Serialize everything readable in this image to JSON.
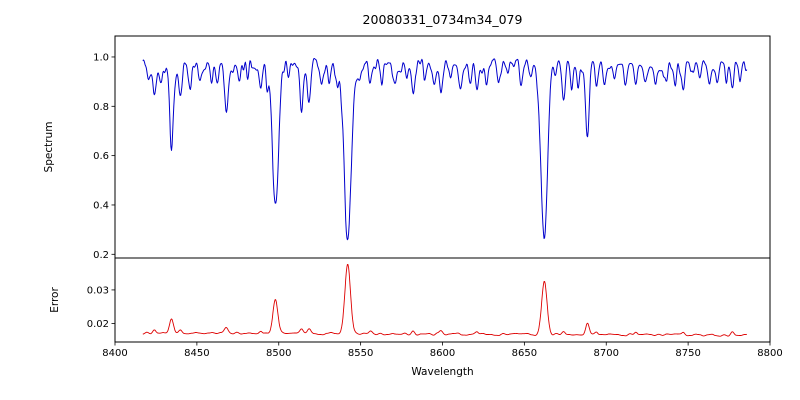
{
  "title": "20080331_0734m34_079",
  "chart_data": {
    "type": "line",
    "title": "20080331_0734m34_079",
    "xlabel": "Wavelength",
    "x_range": [
      8400,
      8800
    ],
    "x_ticks": [
      8400,
      8450,
      8500,
      8550,
      8600,
      8650,
      8700,
      8750,
      8800
    ],
    "x_tick_labels": [
      "8400",
      "8450",
      "8500",
      "8550",
      "8600",
      "8650",
      "8700",
      "8750",
      "8800"
    ],
    "data_x_range": [
      8417,
      8786
    ],
    "grid": false,
    "legend": null,
    "panels": [
      {
        "name": "spectrum",
        "ylabel": "Spectrum",
        "ylim": [
          0.185,
          1.085
        ],
        "y_ticks": [
          0.2,
          0.4,
          0.6,
          0.8,
          1.0
        ],
        "y_tick_labels": [
          "0.2",
          "0.4",
          "0.6",
          "0.8",
          "1.0"
        ],
        "color": "#0000cc",
        "continuum": 0.968,
        "noise": [
          {
            "amp": 0.026,
            "step": 1.3,
            "seed": 42
          },
          {
            "amp": 0.015,
            "step": 5.2,
            "seed": 17
          }
        ],
        "absorption_features_center_depth_width": [
          [
            8421.0,
            0.06,
            0.9
          ],
          [
            8424.0,
            0.1,
            1.0
          ],
          [
            8428.0,
            0.07,
            0.9
          ],
          [
            8434.5,
            0.33,
            1.2
          ],
          [
            8440.0,
            0.1,
            1.0
          ],
          [
            8446.0,
            0.08,
            0.9
          ],
          [
            8452.0,
            0.06,
            0.9
          ],
          [
            8459.0,
            0.07,
            0.9
          ],
          [
            8462.5,
            0.06,
            0.8
          ],
          [
            8468.0,
            0.17,
            1.1
          ],
          [
            8476.0,
            0.07,
            0.9
          ],
          [
            8481.0,
            0.06,
            0.8
          ],
          [
            8489.0,
            0.09,
            0.9
          ],
          [
            8493.0,
            0.07,
            0.8
          ],
          [
            8498.0,
            0.575,
            1.9
          ],
          [
            8506.0,
            0.06,
            0.9
          ],
          [
            8514.0,
            0.19,
            1.0
          ],
          [
            8518.5,
            0.17,
            1.0
          ],
          [
            8526.0,
            0.07,
            0.9
          ],
          [
            8531.0,
            0.06,
            0.8
          ],
          [
            8536.0,
            0.07,
            0.8
          ],
          [
            8542.1,
            0.73,
            2.1
          ],
          [
            8549.0,
            0.06,
            0.9
          ],
          [
            8556.0,
            0.08,
            0.9
          ],
          [
            8563.0,
            0.06,
            0.8
          ],
          [
            8571.0,
            0.07,
            0.9
          ],
          [
            8578.0,
            0.06,
            0.8
          ],
          [
            8582.0,
            0.09,
            0.9
          ],
          [
            8589.0,
            0.06,
            0.8
          ],
          [
            8595.0,
            0.07,
            0.9
          ],
          [
            8599.0,
            0.1,
            0.9
          ],
          [
            8605.0,
            0.06,
            0.8
          ],
          [
            8611.0,
            0.08,
            0.9
          ],
          [
            8617.0,
            0.06,
            0.8
          ],
          [
            8621.0,
            0.09,
            0.9
          ],
          [
            8627.0,
            0.06,
            0.8
          ],
          [
            8634.0,
            0.07,
            0.9
          ],
          [
            8640.0,
            0.06,
            0.8
          ],
          [
            8648.0,
            0.08,
            0.9
          ],
          [
            8654.0,
            0.06,
            0.8
          ],
          [
            8662.2,
            0.7,
            2.0
          ],
          [
            8669.0,
            0.06,
            0.8
          ],
          [
            8674.0,
            0.14,
            1.0
          ],
          [
            8679.0,
            0.1,
            0.9
          ],
          [
            8683.0,
            0.08,
            0.8
          ],
          [
            8688.5,
            0.27,
            1.1
          ],
          [
            8694.0,
            0.12,
            0.9
          ],
          [
            8699.0,
            0.07,
            0.8
          ],
          [
            8705.0,
            0.06,
            0.8
          ],
          [
            8712.0,
            0.08,
            0.9
          ],
          [
            8718.0,
            0.09,
            0.9
          ],
          [
            8724.0,
            0.06,
            0.8
          ],
          [
            8730.0,
            0.07,
            0.8
          ],
          [
            8736.0,
            0.08,
            0.9
          ],
          [
            8742.0,
            0.06,
            0.8
          ],
          [
            8747.0,
            0.09,
            0.9
          ],
          [
            8753.0,
            0.06,
            0.8
          ],
          [
            8757.0,
            0.07,
            0.8
          ],
          [
            8763.0,
            0.06,
            0.8
          ],
          [
            8768.0,
            0.08,
            0.9
          ],
          [
            8773.0,
            0.07,
            0.8
          ],
          [
            8777.0,
            0.09,
            0.9
          ],
          [
            8782.0,
            0.06,
            0.8
          ]
        ]
      },
      {
        "name": "error",
        "ylabel": "Error",
        "ylim": [
          0.0145,
          0.0395
        ],
        "y_ticks": [
          0.02,
          0.03
        ],
        "y_tick_labels": [
          "0.02",
          "0.03"
        ],
        "color": "#dd0000",
        "baseline_start": 0.0172,
        "baseline_end": 0.0165,
        "noise": [
          {
            "amp": 0.00035,
            "step": 2.5,
            "seed": 99
          }
        ],
        "peaks_center_height_width": [
          [
            8424.0,
            0.0012,
            1.0
          ],
          [
            8434.5,
            0.0045,
            1.2
          ],
          [
            8440.0,
            0.0008,
            1.0
          ],
          [
            8468.0,
            0.0015,
            1.1
          ],
          [
            8489.0,
            0.0008,
            0.9
          ],
          [
            8498.0,
            0.01,
            1.5
          ],
          [
            8514.0,
            0.0015,
            1.0
          ],
          [
            8518.5,
            0.0013,
            1.0
          ],
          [
            8542.1,
            0.0205,
            1.7
          ],
          [
            8556.0,
            0.0007,
            0.9
          ],
          [
            8582.0,
            0.0007,
            0.9
          ],
          [
            8599.0,
            0.0008,
            0.9
          ],
          [
            8621.0,
            0.0007,
            0.9
          ],
          [
            8662.2,
            0.0158,
            1.6
          ],
          [
            8674.0,
            0.0012,
            1.0
          ],
          [
            8688.5,
            0.0035,
            1.1
          ],
          [
            8694.0,
            0.001,
            0.9
          ],
          [
            8718.0,
            0.0008,
            0.9
          ],
          [
            8747.0,
            0.0008,
            0.9
          ],
          [
            8777.0,
            0.0007,
            0.9
          ]
        ]
      }
    ]
  }
}
